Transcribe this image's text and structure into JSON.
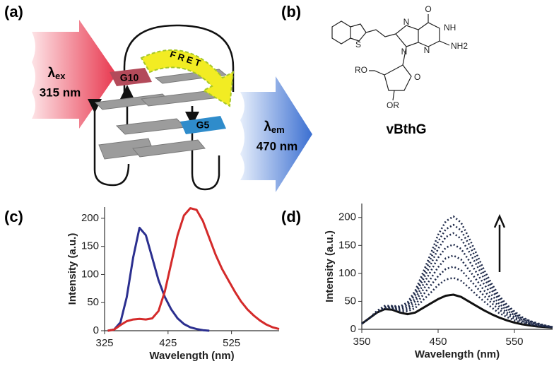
{
  "panels": {
    "a": "(a)",
    "b": "(b)",
    "c": "(c)",
    "d": "(d)"
  },
  "diagram": {
    "excitation": {
      "symbol": "λ",
      "subscript": "ex",
      "value": "315 nm"
    },
    "emission": {
      "symbol": "λ",
      "subscript": "em",
      "value": "470 nm"
    },
    "fret": "F R E T",
    "nodes": [
      "G10",
      "G5"
    ]
  },
  "molecule": {
    "name": "vBthG",
    "atoms": [
      "O",
      "NH",
      "N",
      "N",
      "N",
      "NH2",
      "S",
      "RO",
      "O",
      "OR"
    ]
  },
  "chart_data": [
    {
      "type": "line",
      "xlabel": "Wavelength (nm)",
      "ylabel": "Intensity (a.u.)",
      "xlim": [
        325,
        600
      ],
      "ylim": [
        0,
        220
      ],
      "xticks": [
        325,
        425,
        525
      ],
      "yticks": [
        0,
        50,
        100,
        150,
        200
      ],
      "x": [
        330,
        340,
        350,
        360,
        370,
        380,
        390,
        400,
        410,
        420,
        430,
        440,
        450,
        460,
        470,
        480,
        490,
        500,
        510,
        520,
        530,
        540,
        550,
        560,
        570,
        580,
        590,
        600
      ],
      "series": [
        {
          "color": "#2b2f8f",
          "style": "solid",
          "values": [
            0,
            2,
            15,
            60,
            130,
            183,
            170,
            130,
            90,
            60,
            38,
            22,
            12,
            6,
            3,
            1,
            0,
            null,
            null,
            null,
            null,
            null,
            null,
            null,
            null,
            null,
            null,
            null
          ]
        },
        {
          "color": "#d42a2a",
          "style": "solid",
          "values": [
            0,
            2,
            10,
            17,
            20,
            21,
            20,
            22,
            35,
            70,
            120,
            170,
            205,
            218,
            215,
            195,
            165,
            135,
            110,
            90,
            70,
            52,
            38,
            27,
            18,
            11,
            6,
            3
          ]
        }
      ]
    },
    {
      "type": "line",
      "xlabel": "Wavelength (nm)",
      "ylabel": "Intensity (a.u.)",
      "xlim": [
        350,
        600
      ],
      "ylim": [
        0,
        225
      ],
      "xticks": [
        350,
        450,
        550
      ],
      "yticks": [
        0,
        50,
        100,
        150,
        200
      ],
      "x": [
        350,
        360,
        370,
        380,
        390,
        400,
        410,
        420,
        430,
        440,
        450,
        460,
        470,
        480,
        490,
        500,
        510,
        520,
        530,
        540,
        550,
        560,
        570,
        580,
        590,
        600
      ],
      "series": [
        {
          "color": "#111111",
          "style": "solid",
          "values": [
            10,
            20,
            30,
            36,
            35,
            30,
            27,
            30,
            38,
            46,
            54,
            60,
            62,
            58,
            50,
            42,
            34,
            27,
            21,
            16,
            12,
            9,
            7,
            5,
            4,
            3
          ]
        },
        {
          "color": "#1f2a4a",
          "style": "dotted",
          "values": [
            10,
            20,
            31,
            37,
            37,
            32,
            32,
            38,
            52,
            65,
            79,
            89,
            92,
            87,
            75,
            62,
            50,
            39,
            29,
            22,
            16,
            12,
            9,
            6,
            5,
            3
          ]
        },
        {
          "color": "#1f2a4a",
          "style": "dotted",
          "values": [
            10,
            20,
            31,
            38,
            38,
            34,
            35,
            44,
            61,
            78,
            95,
            108,
            112,
            106,
            91,
            76,
            60,
            47,
            35,
            26,
            19,
            14,
            10,
            7,
            5,
            4
          ]
        },
        {
          "color": "#1f2a4a",
          "style": "dotted",
          "values": [
            10,
            20,
            31,
            39,
            39,
            36,
            38,
            50,
            70,
            90,
            111,
            127,
            132,
            125,
            107,
            89,
            70,
            54,
            41,
            30,
            22,
            15,
            11,
            8,
            5,
            4
          ]
        },
        {
          "color": "#1f2a4a",
          "style": "dotted",
          "values": [
            10,
            20,
            32,
            40,
            40,
            37,
            41,
            55,
            79,
            103,
            128,
            146,
            152,
            144,
            124,
            102,
            81,
            62,
            46,
            34,
            25,
            17,
            12,
            9,
            6,
            4
          ]
        },
        {
          "color": "#1f2a4a",
          "style": "dotted",
          "values": [
            10,
            20,
            32,
            40,
            41,
            39,
            44,
            61,
            88,
            115,
            144,
            165,
            172,
            162,
            140,
            116,
            91,
            70,
            52,
            38,
            27,
            19,
            14,
            9,
            6,
            4
          ]
        },
        {
          "color": "#1f2a4a",
          "style": "dotted",
          "values": [
            10,
            20,
            33,
            41,
            41,
            40,
            46,
            65,
            94,
            125,
            157,
            179,
            187,
            177,
            153,
            126,
            99,
            76,
            56,
            41,
            30,
            20,
            15,
            10,
            7,
            4
          ]
        },
        {
          "color": "#1f2a4a",
          "style": "dotted",
          "values": [
            10,
            20,
            33,
            42,
            42,
            41,
            48,
            69,
            101,
            134,
            169,
            193,
            202,
            191,
            165,
            136,
            107,
            82,
            60,
            44,
            32,
            22,
            15,
            11,
            7,
            4
          ]
        }
      ]
    }
  ]
}
